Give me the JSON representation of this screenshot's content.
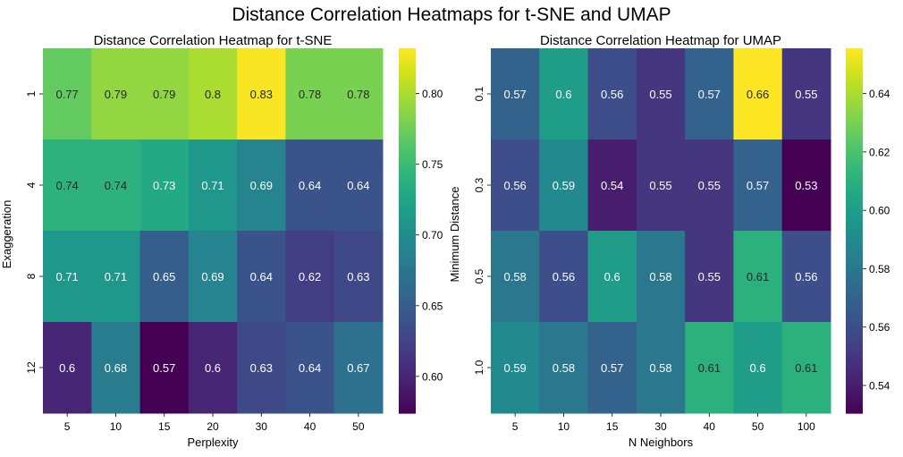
{
  "suptitle": "Distance Correlation Heatmaps for t-SNE and UMAP",
  "chart_data": [
    {
      "type": "heatmap",
      "title": "Distance Correlation Heatmap for t-SNE",
      "xlabel": "Perplexity",
      "ylabel": "Exaggeration",
      "x": [
        "5",
        "10",
        "15",
        "20",
        "30",
        "40",
        "50"
      ],
      "y": [
        "1",
        "4",
        "8",
        "12"
      ],
      "values": [
        [
          0.77,
          0.79,
          0.79,
          0.8,
          0.83,
          0.78,
          0.78
        ],
        [
          0.74,
          0.74,
          0.73,
          0.71,
          0.69,
          0.64,
          0.64
        ],
        [
          0.71,
          0.71,
          0.65,
          0.69,
          0.64,
          0.62,
          0.63
        ],
        [
          0.6,
          0.68,
          0.57,
          0.6,
          0.63,
          0.64,
          0.67
        ]
      ],
      "colormap": "viridis",
      "vmin": 0.574,
      "vmax": 0.832,
      "colorbar_ticks": [
        0.6,
        0.65,
        0.7,
        0.75,
        0.8
      ],
      "colorbar_tick_labels": [
        "0.60",
        "0.65",
        "0.70",
        "0.75",
        "0.80"
      ]
    },
    {
      "type": "heatmap",
      "title": "Distance Correlation Heatmap for UMAP",
      "xlabel": "N Neighbors",
      "ylabel": "Minimum Distance",
      "x": [
        "5",
        "10",
        "15",
        "30",
        "40",
        "50",
        "100"
      ],
      "y": [
        "0.1",
        "0.3",
        "0.5",
        "1.0"
      ],
      "values": [
        [
          0.57,
          0.6,
          0.56,
          0.55,
          0.57,
          0.66,
          0.55
        ],
        [
          0.56,
          0.59,
          0.54,
          0.55,
          0.55,
          0.57,
          0.53
        ],
        [
          0.58,
          0.56,
          0.6,
          0.58,
          0.55,
          0.61,
          0.56
        ],
        [
          0.59,
          0.58,
          0.57,
          0.58,
          0.61,
          0.6,
          0.61
        ]
      ],
      "colormap": "viridis",
      "vmin": 0.5305,
      "vmax": 0.6555,
      "colorbar_ticks": [
        0.54,
        0.56,
        0.58,
        0.6,
        0.62,
        0.64
      ],
      "colorbar_tick_labels": [
        "0.54",
        "0.56",
        "0.58",
        "0.60",
        "0.62",
        "0.64"
      ]
    }
  ]
}
